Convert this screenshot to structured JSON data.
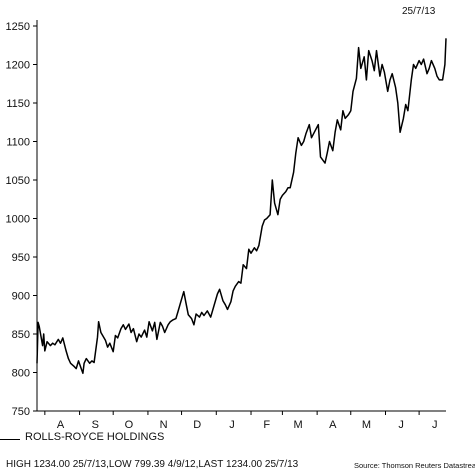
{
  "header": {
    "date": "25/7/13"
  },
  "legend": {
    "label": "ROLLS-ROYCE HOLDINGS"
  },
  "footer": {
    "stats": "HIGH 1234.00 25/7/13,LOW 799.39 4/9/12,LAST 1234.00 25/7/13",
    "source": "Source: Thomson Reuters Datastream"
  },
  "chart_data": {
    "type": "line",
    "title": "",
    "xlabel": "",
    "ylabel": "",
    "x_range": [
      "2012-07-25",
      "2013-07-25"
    ],
    "ylim": [
      750,
      1250
    ],
    "yticks": [
      750,
      800,
      850,
      900,
      950,
      1000,
      1050,
      1100,
      1150,
      1200,
      1250
    ],
    "xtick_labels": [
      {
        "label": "A",
        "date": "2012-08-15"
      },
      {
        "label": "S",
        "date": "2012-09-15"
      },
      {
        "label": "O",
        "date": "2012-10-15"
      },
      {
        "label": "N",
        "date": "2012-11-15"
      },
      {
        "label": "D",
        "date": "2012-12-15"
      },
      {
        "label": "J",
        "date": "2013-01-15"
      },
      {
        "label": "F",
        "date": "2013-02-15"
      },
      {
        "label": "M",
        "date": "2013-03-15"
      },
      {
        "label": "A",
        "date": "2013-04-15"
      },
      {
        "label": "M",
        "date": "2013-05-15"
      },
      {
        "label": "J",
        "date": "2013-06-15"
      },
      {
        "label": "J",
        "date": "2013-07-15"
      }
    ],
    "grid": false,
    "series": [
      {
        "name": "ROLLS-ROYCE HOLDINGS",
        "color": "#000000",
        "points": [
          [
            "2012-07-25",
            812
          ],
          [
            "2012-07-26",
            865
          ],
          [
            "2012-07-27",
            860
          ],
          [
            "2012-07-30",
            835
          ],
          [
            "2012-07-31",
            850
          ],
          [
            "2012-08-01",
            828
          ],
          [
            "2012-08-03",
            840
          ],
          [
            "2012-08-06",
            835
          ],
          [
            "2012-08-08",
            838
          ],
          [
            "2012-08-10",
            836
          ],
          [
            "2012-08-13",
            843
          ],
          [
            "2012-08-15",
            838
          ],
          [
            "2012-08-17",
            845
          ],
          [
            "2012-08-20",
            828
          ],
          [
            "2012-08-22",
            818
          ],
          [
            "2012-08-24",
            812
          ],
          [
            "2012-08-27",
            808
          ],
          [
            "2012-08-29",
            805
          ],
          [
            "2012-08-31",
            815
          ],
          [
            "2012-09-03",
            803
          ],
          [
            "2012-09-04",
            799
          ],
          [
            "2012-09-05",
            812
          ],
          [
            "2012-09-07",
            818
          ],
          [
            "2012-09-10",
            812
          ],
          [
            "2012-09-12",
            815
          ],
          [
            "2012-09-14",
            813
          ],
          [
            "2012-09-17",
            846
          ],
          [
            "2012-09-18",
            866
          ],
          [
            "2012-09-20",
            852
          ],
          [
            "2012-09-24",
            842
          ],
          [
            "2012-09-26",
            833
          ],
          [
            "2012-09-28",
            838
          ],
          [
            "2012-10-01",
            827
          ],
          [
            "2012-10-03",
            848
          ],
          [
            "2012-10-05",
            845
          ],
          [
            "2012-10-08",
            857
          ],
          [
            "2012-10-10",
            862
          ],
          [
            "2012-10-12",
            856
          ],
          [
            "2012-10-15",
            863
          ],
          [
            "2012-10-17",
            852
          ],
          [
            "2012-10-19",
            857
          ],
          [
            "2012-10-22",
            840
          ],
          [
            "2012-10-24",
            850
          ],
          [
            "2012-10-26",
            846
          ],
          [
            "2012-10-29",
            855
          ],
          [
            "2012-10-31",
            846
          ],
          [
            "2012-11-02",
            866
          ],
          [
            "2012-11-05",
            854
          ],
          [
            "2012-11-07",
            865
          ],
          [
            "2012-11-09",
            843
          ],
          [
            "2012-11-12",
            865
          ],
          [
            "2012-11-14",
            860
          ],
          [
            "2012-11-16",
            852
          ],
          [
            "2012-11-19",
            862
          ],
          [
            "2012-11-21",
            866
          ],
          [
            "2012-11-23",
            868
          ],
          [
            "2012-11-26",
            870
          ],
          [
            "2012-11-28",
            880
          ],
          [
            "2012-11-30",
            890
          ],
          [
            "2012-12-03",
            905
          ],
          [
            "2012-12-05",
            890
          ],
          [
            "2012-12-07",
            875
          ],
          [
            "2012-12-10",
            870
          ],
          [
            "2012-12-12",
            862
          ],
          [
            "2012-12-14",
            876
          ],
          [
            "2012-12-17",
            872
          ],
          [
            "2012-12-19",
            878
          ],
          [
            "2012-12-21",
            874
          ],
          [
            "2012-12-24",
            880
          ],
          [
            "2012-12-27",
            872
          ],
          [
            "2013-01-02",
            902
          ],
          [
            "2013-01-04",
            908
          ],
          [
            "2013-01-07",
            893
          ],
          [
            "2013-01-09",
            888
          ],
          [
            "2013-01-11",
            882
          ],
          [
            "2013-01-14",
            892
          ],
          [
            "2013-01-16",
            906
          ],
          [
            "2013-01-18",
            912
          ],
          [
            "2013-01-21",
            918
          ],
          [
            "2013-01-23",
            916
          ],
          [
            "2013-01-25",
            940
          ],
          [
            "2013-01-28",
            935
          ],
          [
            "2013-01-30",
            960
          ],
          [
            "2013-02-01",
            955
          ],
          [
            "2013-02-04",
            962
          ],
          [
            "2013-02-06",
            958
          ],
          [
            "2013-02-08",
            965
          ],
          [
            "2013-02-11",
            990
          ],
          [
            "2013-02-13",
            998
          ],
          [
            "2013-02-15",
            1000
          ],
          [
            "2013-02-18",
            1005
          ],
          [
            "2013-02-20",
            1050
          ],
          [
            "2013-02-22",
            1020
          ],
          [
            "2013-02-25",
            1005
          ],
          [
            "2013-02-27",
            1025
          ],
          [
            "2013-03-01",
            1030
          ],
          [
            "2013-03-04",
            1035
          ],
          [
            "2013-03-06",
            1040
          ],
          [
            "2013-03-08",
            1040
          ],
          [
            "2013-03-11",
            1060
          ],
          [
            "2013-03-13",
            1085
          ],
          [
            "2013-03-15",
            1105
          ],
          [
            "2013-03-18",
            1095
          ],
          [
            "2013-03-20",
            1100
          ],
          [
            "2013-03-22",
            1110
          ],
          [
            "2013-03-25",
            1122
          ],
          [
            "2013-03-27",
            1105
          ],
          [
            "2013-04-02",
            1122
          ],
          [
            "2013-04-04",
            1080
          ],
          [
            "2013-04-08",
            1072
          ],
          [
            "2013-04-10",
            1085
          ],
          [
            "2013-04-12",
            1100
          ],
          [
            "2013-04-15",
            1088
          ],
          [
            "2013-04-17",
            1112
          ],
          [
            "2013-04-19",
            1128
          ],
          [
            "2013-04-22",
            1115
          ],
          [
            "2013-04-24",
            1140
          ],
          [
            "2013-04-26",
            1130
          ],
          [
            "2013-04-29",
            1135
          ],
          [
            "2013-05-01",
            1140
          ],
          [
            "2013-05-03",
            1165
          ],
          [
            "2013-05-06",
            1182
          ],
          [
            "2013-05-08",
            1222
          ],
          [
            "2013-05-10",
            1195
          ],
          [
            "2013-05-13",
            1210
          ],
          [
            "2013-05-15",
            1180
          ],
          [
            "2013-05-17",
            1218
          ],
          [
            "2013-05-20",
            1205
          ],
          [
            "2013-05-22",
            1192
          ],
          [
            "2013-05-24",
            1218
          ],
          [
            "2013-05-27",
            1185
          ],
          [
            "2013-05-29",
            1200
          ],
          [
            "2013-05-31",
            1190
          ],
          [
            "2013-06-03",
            1165
          ],
          [
            "2013-06-05",
            1180
          ],
          [
            "2013-06-07",
            1188
          ],
          [
            "2013-06-10",
            1170
          ],
          [
            "2013-06-12",
            1150
          ],
          [
            "2013-06-14",
            1112
          ],
          [
            "2013-06-17",
            1130
          ],
          [
            "2013-06-19",
            1148
          ],
          [
            "2013-06-21",
            1140
          ],
          [
            "2013-06-24",
            1180
          ],
          [
            "2013-06-26",
            1200
          ],
          [
            "2013-06-28",
            1195
          ],
          [
            "2013-07-01",
            1205
          ],
          [
            "2013-07-03",
            1200
          ],
          [
            "2013-07-05",
            1207
          ],
          [
            "2013-07-08",
            1188
          ],
          [
            "2013-07-10",
            1195
          ],
          [
            "2013-07-12",
            1205
          ],
          [
            "2013-07-15",
            1195
          ],
          [
            "2013-07-17",
            1185
          ],
          [
            "2013-07-19",
            1180
          ],
          [
            "2013-07-22",
            1180
          ],
          [
            "2013-07-24",
            1200
          ],
          [
            "2013-07-25",
            1234
          ]
        ]
      }
    ]
  }
}
